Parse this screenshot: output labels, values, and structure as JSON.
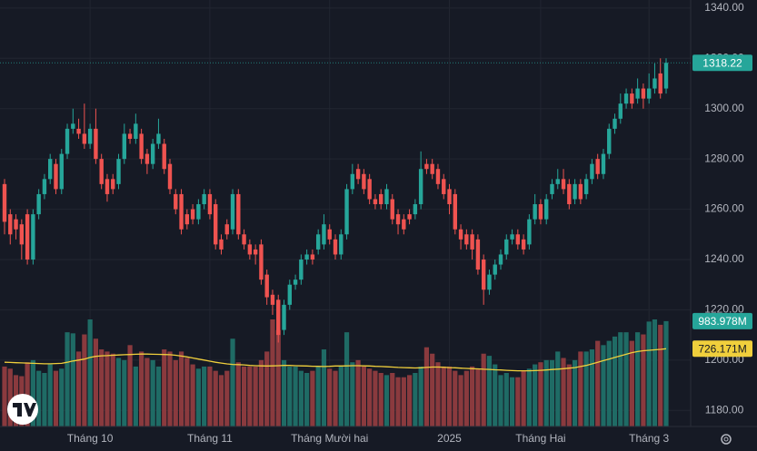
{
  "chart_data": {
    "type": "candlestick",
    "categories": [
      null,
      null,
      null,
      null,
      null,
      null,
      null,
      null,
      null,
      null,
      null,
      null,
      null,
      null,
      null,
      "Tháng 10",
      null,
      null,
      null,
      null,
      null,
      null,
      null,
      null,
      null,
      null,
      null,
      null,
      null,
      null,
      null,
      null,
      null,
      null,
      null,
      null,
      "Tháng 11",
      null,
      null,
      null,
      null,
      null,
      null,
      null,
      null,
      null,
      null,
      null,
      null,
      null,
      null,
      null,
      null,
      null,
      null,
      null,
      null,
      "Tháng Mười hai",
      null,
      null,
      null,
      null,
      null,
      null,
      null,
      null,
      null,
      null,
      null,
      null,
      null,
      null,
      null,
      null,
      null,
      null,
      null,
      null,
      "2025",
      null,
      null,
      null,
      null,
      null,
      null,
      null,
      null,
      null,
      null,
      null,
      null,
      null,
      null,
      null,
      "Tháng Hai",
      null,
      null,
      null,
      null,
      null,
      null,
      null,
      null,
      null,
      null,
      null,
      null,
      null,
      null,
      null,
      null,
      null,
      null,
      "Tháng 3",
      null,
      null,
      null
    ],
    "open": [
      1270,
      1258,
      1256,
      1254,
      1258,
      1240,
      1258,
      1266,
      1272,
      1278,
      1268,
      1282,
      1292,
      1292,
      1290,
      1286,
      1292,
      1280,
      1272,
      1272,
      1270,
      1280,
      1290,
      1288,
      1290,
      1282,
      1278,
      1286,
      1286,
      1278,
      1266,
      1266,
      1258,
      1260,
      1256,
      1262,
      1266,
      1262,
      1248,
      1254,
      1252,
      1266,
      1250,
      1246,
      1244,
      1246,
      1234,
      1226,
      1224,
      1212,
      1222,
      1230,
      1232,
      1240,
      1242,
      1244,
      1246,
      1252,
      1248,
      1242,
      1250,
      1268,
      1276,
      1274,
      1272,
      1264,
      1266,
      1262,
      1264,
      1258,
      1256,
      1258,
      1258,
      1262,
      1278,
      1278,
      1276,
      1272,
      1268,
      1266,
      1252,
      1250,
      1250,
      1248,
      1240,
      1228,
      1234,
      1238,
      1242,
      1248,
      1250,
      1248,
      1246,
      1256,
      1262,
      1256,
      1266,
      1270,
      1272,
      1270,
      1264,
      1270,
      1266,
      1272,
      1280,
      1274,
      1282,
      1292,
      1296,
      1302,
      1306,
      1304,
      1308,
      1304,
      1308,
      1314,
      1308
    ],
    "high": [
      1272,
      1260,
      1258,
      1256,
      1260,
      1260,
      1268,
      1274,
      1282,
      1280,
      1284,
      1294,
      1300,
      1296,
      1302,
      1294,
      1300,
      1282,
      1274,
      1274,
      1282,
      1294,
      1292,
      1298,
      1292,
      1284,
      1288,
      1296,
      1288,
      1280,
      1268,
      1268,
      1260,
      1262,
      1264,
      1268,
      1268,
      1264,
      1250,
      1256,
      1268,
      1268,
      1252,
      1248,
      1246,
      1248,
      1236,
      1228,
      1226,
      1224,
      1232,
      1234,
      1242,
      1244,
      1244,
      1252,
      1258,
      1254,
      1250,
      1252,
      1270,
      1278,
      1278,
      1276,
      1274,
      1266,
      1268,
      1270,
      1266,
      1260,
      1258,
      1260,
      1264,
      1283,
      1280,
      1280,
      1278,
      1274,
      1270,
      1268,
      1254,
      1252,
      1252,
      1250,
      1242,
      1236,
      1240,
      1244,
      1250,
      1252,
      1252,
      1250,
      1258,
      1266,
      1264,
      1266,
      1272,
      1276,
      1276,
      1272,
      1272,
      1272,
      1274,
      1280,
      1282,
      1284,
      1294,
      1298,
      1306,
      1308,
      1308,
      1312,
      1310,
      1314,
      1318,
      1320,
      1320
    ],
    "low": [
      1250,
      1246,
      1248,
      1240,
      1238,
      1238,
      1256,
      1264,
      1270,
      1266,
      1266,
      1280,
      1290,
      1288,
      1284,
      1284,
      1278,
      1268,
      1263,
      1266,
      1268,
      1278,
      1286,
      1286,
      1278,
      1274,
      1276,
      1284,
      1274,
      1266,
      1258,
      1250,
      1252,
      1254,
      1254,
      1260,
      1256,
      1244,
      1242,
      1248,
      1250,
      1248,
      1244,
      1240,
      1238,
      1230,
      1222,
      1218,
      1207,
      1210,
      1220,
      1228,
      1230,
      1238,
      1238,
      1242,
      1244,
      1246,
      1240,
      1240,
      1248,
      1266,
      1270,
      1266,
      1262,
      1260,
      1260,
      1260,
      1254,
      1250,
      1250,
      1254,
      1256,
      1260,
      1274,
      1272,
      1268,
      1264,
      1258,
      1250,
      1244,
      1244,
      1240,
      1234,
      1222,
      1226,
      1232,
      1236,
      1240,
      1246,
      1244,
      1242,
      1244,
      1254,
      1254,
      1254,
      1264,
      1268,
      1266,
      1260,
      1262,
      1262,
      1264,
      1270,
      1272,
      1272,
      1280,
      1290,
      1294,
      1300,
      1300,
      1302,
      1300,
      1302,
      1306,
      1304,
      1306
    ],
    "close": [
      1255,
      1250,
      1252,
      1246,
      1240,
      1258,
      1266,
      1272,
      1280,
      1268,
      1282,
      1292,
      1294,
      1290,
      1286,
      1292,
      1280,
      1270,
      1266,
      1268,
      1280,
      1290,
      1288,
      1294,
      1280,
      1278,
      1286,
      1290,
      1276,
      1268,
      1260,
      1252,
      1254,
      1256,
      1262,
      1266,
      1258,
      1246,
      1244,
      1250,
      1266,
      1250,
      1246,
      1242,
      1242,
      1232,
      1225,
      1222,
      1210,
      1222,
      1230,
      1232,
      1240,
      1242,
      1240,
      1250,
      1254,
      1248,
      1242,
      1250,
      1268,
      1274,
      1272,
      1268,
      1264,
      1262,
      1262,
      1268,
      1256,
      1254,
      1252,
      1256,
      1262,
      1276,
      1276,
      1274,
      1270,
      1266,
      1262,
      1252,
      1248,
      1246,
      1244,
      1236,
      1228,
      1234,
      1238,
      1242,
      1248,
      1250,
      1246,
      1244,
      1256,
      1262,
      1256,
      1264,
      1270,
      1272,
      1268,
      1262,
      1270,
      1264,
      1272,
      1278,
      1274,
      1282,
      1292,
      1296,
      1302,
      1306,
      1302,
      1308,
      1304,
      1308,
      1312,
      1306,
      1318.22
    ],
    "up_color": "#26a69a",
    "down_color": "#ef5350",
    "ylim": [
      1173.6,
      1343.2
    ],
    "yticks": [
      {
        "value": 1180,
        "label": "1180.00"
      },
      {
        "value": 1200,
        "label": "1200.00"
      },
      {
        "value": 1220,
        "label": "1220.00"
      },
      {
        "value": 1240,
        "label": "1240.00"
      },
      {
        "value": 1260,
        "label": "1260.00"
      },
      {
        "value": 1280,
        "label": "1280.00"
      },
      {
        "value": 1300,
        "label": "1300.00"
      },
      {
        "value": 1320,
        "label": "1320.00"
      },
      {
        "value": 1340,
        "label": "1340.00"
      }
    ],
    "grid": true,
    "volume": {
      "values": [
        560,
        540,
        480,
        470,
        600,
        620,
        520,
        500,
        580,
        520,
        540,
        880,
        870,
        700,
        860,
        1000,
        820,
        720,
        700,
        680,
        640,
        620,
        760,
        560,
        700,
        640,
        620,
        560,
        720,
        700,
        620,
        700,
        640,
        580,
        540,
        560,
        560,
        520,
        480,
        520,
        820,
        600,
        560,
        560,
        560,
        620,
        700,
        1000,
        900,
        620,
        560,
        560,
        520,
        500,
        520,
        560,
        720,
        540,
        520,
        560,
        880,
        600,
        620,
        560,
        540,
        520,
        500,
        480,
        500,
        460,
        460,
        480,
        500,
        560,
        740,
        680,
        600,
        560,
        560,
        520,
        480,
        520,
        560,
        540,
        680,
        660,
        580,
        480,
        500,
        460,
        460,
        520,
        540,
        580,
        600,
        620,
        620,
        700,
        640,
        580,
        620,
        700,
        700,
        720,
        800,
        760,
        800,
        840,
        880,
        880,
        800,
        880,
        860,
        980,
        1000,
        950,
        983.978
      ],
      "value_labels": [
        null,
        null,
        null,
        null,
        null,
        null,
        null,
        null,
        null,
        null,
        null,
        null,
        null,
        null,
        null,
        null,
        null,
        null,
        null,
        null,
        null,
        null,
        null,
        null,
        null,
        null,
        null,
        null,
        null,
        null,
        null,
        null,
        null,
        null,
        null,
        null,
        null,
        null,
        null,
        null,
        null,
        null,
        null,
        null,
        null,
        null,
        null,
        null,
        null,
        null,
        null,
        null,
        null,
        null,
        null,
        null,
        null,
        null,
        null,
        null,
        null,
        null,
        null,
        null,
        null,
        null,
        null,
        null,
        null,
        null,
        null,
        null,
        null,
        null,
        null,
        null,
        null,
        null,
        null,
        null,
        null,
        null,
        null,
        null,
        null,
        null,
        null,
        null,
        null,
        null,
        null,
        null,
        null,
        null,
        null,
        null,
        null,
        null,
        null,
        null,
        null,
        null,
        null,
        null,
        null,
        null,
        null,
        null,
        null,
        null,
        null,
        null,
        null,
        null,
        null,
        null,
        "983.978M"
      ],
      "up_color": "#1f6b65",
      "down_color": "#8a3a3e"
    },
    "volume_ma": {
      "values": [
        600,
        598,
        596,
        594,
        592,
        590,
        588,
        586,
        586,
        588,
        590,
        600,
        612,
        620,
        630,
        645,
        655,
        660,
        662,
        665,
        668,
        670,
        672,
        675,
        676,
        676,
        675,
        674,
        672,
        670,
        665,
        658,
        650,
        640,
        630,
        620,
        610,
        600,
        592,
        585,
        580,
        578,
        575,
        570,
        568,
        566,
        565,
        566,
        568,
        570,
        570,
        568,
        566,
        565,
        563,
        562,
        560,
        562,
        565,
        565,
        566,
        568,
        568,
        566,
        565,
        562,
        560,
        558,
        555,
        552,
        550,
        548,
        547,
        548,
        552,
        555,
        555,
        553,
        550,
        548,
        545,
        542,
        540,
        538,
        535,
        533,
        530,
        528,
        525,
        522,
        520,
        520,
        520,
        522,
        525,
        528,
        532,
        536,
        540,
        545,
        550,
        560,
        570,
        585,
        600,
        615,
        630,
        645,
        660,
        675,
        690,
        700,
        708,
        712,
        716,
        720,
        726.171
      ],
      "value_labels": [
        null,
        null,
        null,
        null,
        null,
        null,
        null,
        null,
        null,
        null,
        null,
        null,
        null,
        null,
        null,
        null,
        null,
        null,
        null,
        null,
        null,
        null,
        null,
        null,
        null,
        null,
        null,
        null,
        null,
        null,
        null,
        null,
        null,
        null,
        null,
        null,
        null,
        null,
        null,
        null,
        null,
        null,
        null,
        null,
        null,
        null,
        null,
        null,
        null,
        null,
        null,
        null,
        null,
        null,
        null,
        null,
        null,
        null,
        null,
        null,
        null,
        null,
        null,
        null,
        null,
        null,
        null,
        null,
        null,
        null,
        null,
        null,
        null,
        null,
        null,
        null,
        null,
        null,
        null,
        null,
        null,
        null,
        null,
        null,
        null,
        null,
        null,
        null,
        null,
        null,
        null,
        null,
        null,
        null,
        null,
        null,
        null,
        null,
        null,
        null,
        null,
        null,
        null,
        null,
        null,
        null,
        null,
        null,
        null,
        null,
        null,
        null,
        null,
        null,
        null,
        null,
        "726.171M"
      ],
      "color": "#f0cf3c"
    }
  }
}
